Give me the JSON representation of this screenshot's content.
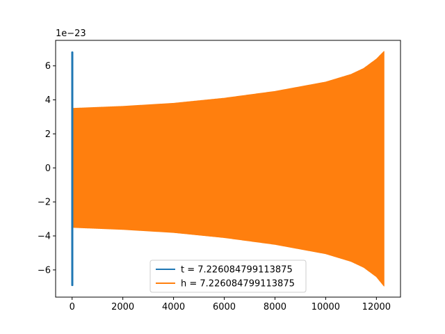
{
  "chart_data": {
    "type": "line",
    "title": "",
    "xlabel": "",
    "ylabel": "",
    "y_offset_label": "1e−23",
    "xlim": [
      -650,
      12950
    ],
    "ylim": [
      -7.6,
      7.5
    ],
    "x_ticks": [
      {
        "value": 0,
        "label": "0"
      },
      {
        "value": 2000,
        "label": "2000"
      },
      {
        "value": 4000,
        "label": "4000"
      },
      {
        "value": 6000,
        "label": "6000"
      },
      {
        "value": 8000,
        "label": "8000"
      },
      {
        "value": 10000,
        "label": "10000"
      },
      {
        "value": 12000,
        "label": "12000"
      }
    ],
    "y_ticks": [
      {
        "value": -6,
        "label": "−6"
      },
      {
        "value": -4,
        "label": "−4"
      },
      {
        "value": -2,
        "label": "−2"
      },
      {
        "value": 0,
        "label": "0"
      },
      {
        "value": 2,
        "label": "2"
      },
      {
        "value": 4,
        "label": "4"
      },
      {
        "value": 6,
        "label": "6"
      }
    ],
    "grid": false,
    "legend_position": "lower-center",
    "series": [
      {
        "name": "t = 7.226084799113875",
        "color": "#1f77b4",
        "x_range": [
          0,
          14
        ],
        "envelope": {
          "x": [
            0,
            14
          ],
          "upper": [
            6.8,
            6.8
          ],
          "lower": [
            -6.9,
            -6.9
          ]
        }
      },
      {
        "name": "h = 7.226084799113875",
        "color": "#ff7f0e",
        "x_range": [
          0,
          12300
        ],
        "envelope": {
          "x": [
            0,
            2000,
            4000,
            6000,
            8000,
            10000,
            11000,
            11500,
            12000,
            12300
          ],
          "upper": [
            3.5,
            3.62,
            3.8,
            4.1,
            4.5,
            5.05,
            5.5,
            5.85,
            6.4,
            6.85
          ],
          "lower": [
            -3.5,
            -3.62,
            -3.8,
            -4.1,
            -4.5,
            -5.05,
            -5.5,
            -5.85,
            -6.4,
            -6.95
          ]
        }
      }
    ]
  }
}
